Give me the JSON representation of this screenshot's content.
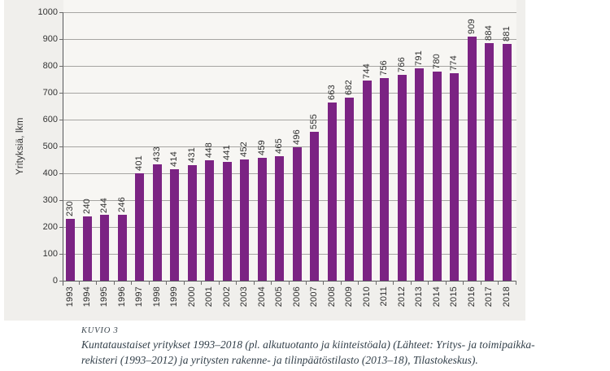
{
  "chart_data": {
    "type": "bar",
    "title": "",
    "xlabel": "",
    "ylabel": "Yrityksiä, lkm",
    "categories": [
      "1993",
      "1994",
      "1995",
      "1996",
      "1997",
      "1998",
      "1999",
      "2000",
      "2001",
      "2002",
      "2003",
      "2004",
      "2005",
      "2006",
      "2007",
      "2008",
      "2009",
      "2010",
      "2011",
      "2012",
      "2013",
      "2014",
      "2015",
      "2016",
      "2017",
      "2018"
    ],
    "values": [
      230,
      240,
      244,
      246,
      401,
      433,
      414,
      431,
      448,
      441,
      452,
      459,
      465,
      496,
      555,
      663,
      682,
      744,
      756,
      766,
      791,
      780,
      774,
      909,
      884,
      881
    ],
    "ylim": [
      0,
      1000
    ],
    "ytick_step": 100,
    "grid": true,
    "legend": "none",
    "value_labels": true,
    "label_rotation": -90
  },
  "caption": {
    "kicker": "KUVIO 3",
    "line1": "Kuntataustaiset yritykset 1993–2018 (pl. alkutuotanto ja kiinteistöala) (Lähteet: Yritys- ja toimipaikka-",
    "line2": "rekisteri (1993–2012) ja yritysten rakenne- ja tilinpäätöstilasto (2013–18), Tilastokeskus)."
  },
  "colors": {
    "bar": "#7b2383",
    "figure_bg": "#f0efec",
    "plot_bg": "#f7f6f3",
    "gridline": "#a6a5a2",
    "axis": "#58595b",
    "tick_text": "#333333",
    "caption_text": "#33404a"
  }
}
